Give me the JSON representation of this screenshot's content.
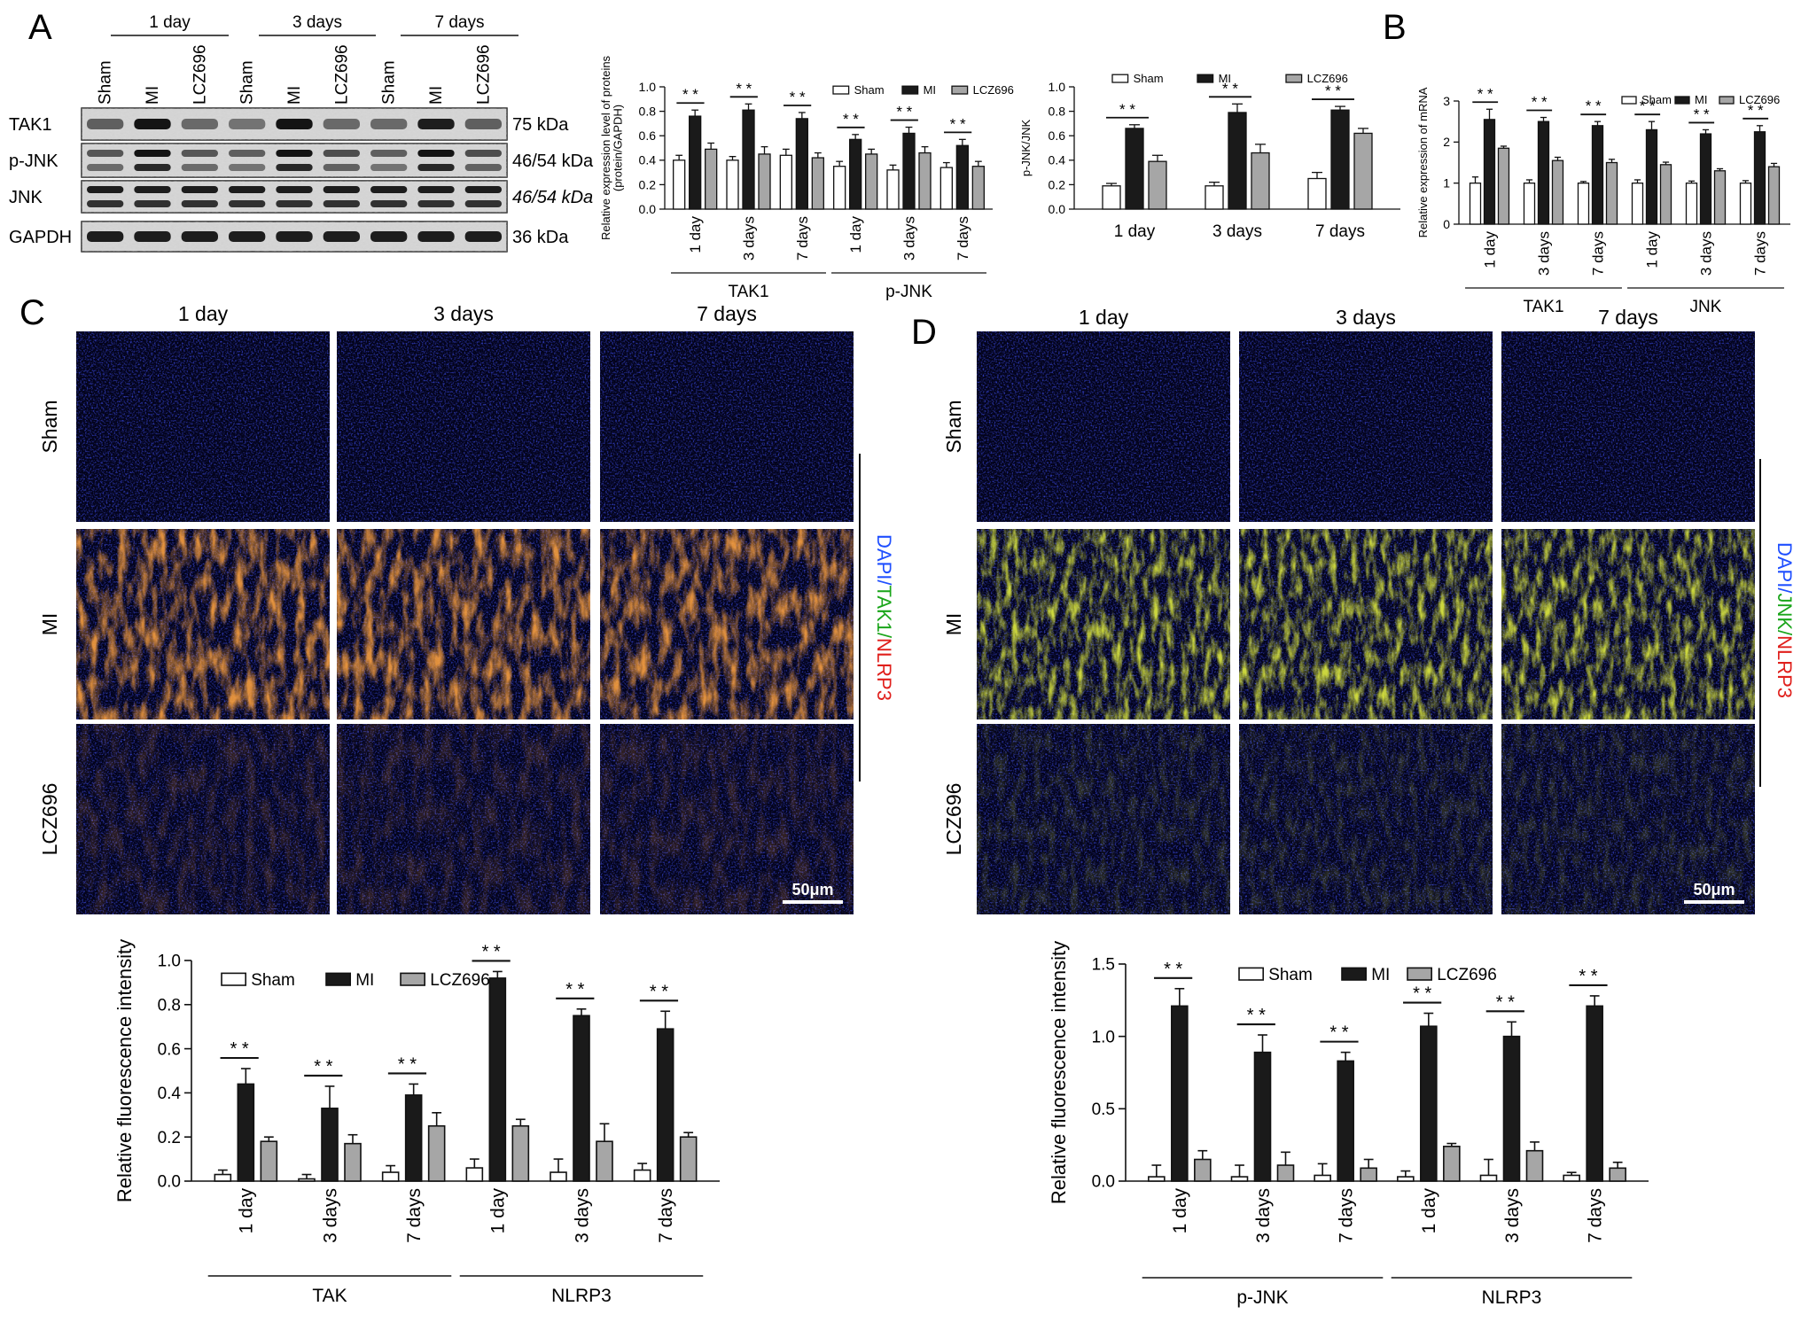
{
  "panel_letters": [
    "A",
    "B",
    "C",
    "D"
  ],
  "western_blot": {
    "time_groups": [
      "1 day",
      "3 days",
      "7 days"
    ],
    "lane_labels": [
      "Sham",
      "MI",
      "LCZ696",
      "Sham",
      "MI",
      "LCZ696",
      "Sham",
      "MI",
      "LCZ696"
    ],
    "rows": [
      {
        "protein": "TAK1",
        "size": "75 kDa"
      },
      {
        "protein": "p-JNK",
        "size": "46/54 kDa"
      },
      {
        "protein": "JNK",
        "size": "46/54 kDa"
      },
      {
        "protein": "GAPDH",
        "size": "36 kDa"
      }
    ]
  },
  "legend": [
    "Sham",
    "MI",
    "LCZ696"
  ],
  "colors": {
    "Sham": "#ffffff",
    "MI": "#1a1a1a",
    "LCZ696": "#a6a6a6",
    "dapi_label": "#1f4fff",
    "green_label": "#1aa51a",
    "red_label": "#e0201c"
  },
  "chart_data": [
    {
      "id": "A_protein",
      "type": "bar",
      "ylabel": "Relative expression level of proteins (protein/GAPDH)",
      "ylim": [
        0,
        1.0
      ],
      "yticks": [
        "0.0",
        "0.2",
        "0.4",
        "0.6",
        "0.8",
        "1.0"
      ],
      "categories": [
        "1 day",
        "3 days",
        "7 days",
        "1 day",
        "3 days",
        "7 days"
      ],
      "groups": [
        "TAK1",
        "p-JNK"
      ],
      "series": [
        {
          "name": "Sham",
          "values": [
            0.4,
            0.4,
            0.44,
            0.35,
            0.32,
            0.34
          ],
          "err": [
            0.04,
            0.03,
            0.05,
            0.04,
            0.04,
            0.04
          ]
        },
        {
          "name": "MI",
          "values": [
            0.76,
            0.81,
            0.74,
            0.57,
            0.62,
            0.52
          ],
          "err": [
            0.05,
            0.05,
            0.05,
            0.04,
            0.05,
            0.05
          ]
        },
        {
          "name": "LCZ696",
          "values": [
            0.49,
            0.45,
            0.42,
            0.45,
            0.46,
            0.35
          ],
          "err": [
            0.05,
            0.06,
            0.04,
            0.04,
            0.05,
            0.04
          ]
        }
      ],
      "legend_position": "top-right",
      "annotation": "* *"
    },
    {
      "id": "A_ratio",
      "type": "bar",
      "ylabel": "p-JNK/JNK",
      "ylim": [
        0,
        1.0
      ],
      "yticks": [
        "0.0",
        "0.2",
        "0.4",
        "0.6",
        "0.8",
        "1.0"
      ],
      "categories": [
        "1 day",
        "3 days",
        "7 days"
      ],
      "series": [
        {
          "name": "Sham",
          "values": [
            0.19,
            0.19,
            0.25
          ],
          "err": [
            0.02,
            0.03,
            0.05
          ]
        },
        {
          "name": "MI",
          "values": [
            0.66,
            0.79,
            0.81
          ],
          "err": [
            0.03,
            0.07,
            0.03
          ]
        },
        {
          "name": "LCZ696",
          "values": [
            0.39,
            0.46,
            0.62
          ],
          "err": [
            0.05,
            0.07,
            0.04
          ]
        }
      ],
      "legend_position": "top",
      "annotation": "*   *"
    },
    {
      "id": "B_mrna",
      "type": "bar",
      "ylabel": "Relative expression of mRNA",
      "ylim": [
        0,
        3
      ],
      "yticks": [
        "0",
        "1",
        "2",
        "3"
      ],
      "categories": [
        "1 day",
        "3 days",
        "7 days",
        "1 day",
        "3 days",
        "7 days"
      ],
      "groups": [
        "TAK1",
        "JNK"
      ],
      "series": [
        {
          "name": "Sham",
          "values": [
            1.0,
            1.0,
            1.0,
            1.0,
            1.0,
            1.0
          ],
          "err": [
            0.15,
            0.08,
            0.04,
            0.08,
            0.05,
            0.06
          ]
        },
        {
          "name": "MI",
          "values": [
            2.55,
            2.5,
            2.4,
            2.3,
            2.2,
            2.25
          ],
          "err": [
            0.25,
            0.1,
            0.1,
            0.2,
            0.1,
            0.15
          ]
        },
        {
          "name": "LCZ696",
          "values": [
            1.85,
            1.55,
            1.5,
            1.45,
            1.3,
            1.4
          ],
          "err": [
            0.05,
            0.08,
            0.08,
            0.06,
            0.05,
            0.08
          ]
        }
      ],
      "legend_position": "top-right",
      "annotation": "* *"
    },
    {
      "id": "C_fluor",
      "type": "bar",
      "ylabel": "Relative fluorescence intensity",
      "ylim": [
        0,
        1.0
      ],
      "yticks": [
        "0.0",
        "0.2",
        "0.4",
        "0.6",
        "0.8",
        "1.0"
      ],
      "categories": [
        "1 day",
        "3 days",
        "7 days",
        "1 day",
        "3 days",
        "7 days"
      ],
      "groups": [
        "TAK",
        "NLRP3"
      ],
      "series": [
        {
          "name": "Sham",
          "values": [
            0.03,
            0.01,
            0.04,
            0.06,
            0.04,
            0.05
          ],
          "err": [
            0.02,
            0.02,
            0.03,
            0.04,
            0.06,
            0.03
          ]
        },
        {
          "name": "MI",
          "values": [
            0.44,
            0.33,
            0.39,
            0.92,
            0.75,
            0.69
          ],
          "err": [
            0.07,
            0.1,
            0.05,
            0.03,
            0.03,
            0.08
          ]
        },
        {
          "name": "LCZ696",
          "values": [
            0.18,
            0.17,
            0.25,
            0.25,
            0.18,
            0.2
          ],
          "err": [
            0.02,
            0.04,
            0.06,
            0.03,
            0.08,
            0.02
          ]
        }
      ],
      "legend_position": "top",
      "annotation": "* *"
    },
    {
      "id": "D_fluor",
      "type": "bar",
      "ylabel": "Relative fluorescence intensity",
      "ylim": [
        0,
        1.5
      ],
      "yticks": [
        "0.0",
        "0.5",
        "1.0",
        "1.5"
      ],
      "categories": [
        "1 day",
        "3 days",
        "7 days",
        "1 day",
        "3 days",
        "7 days"
      ],
      "groups": [
        "p-JNK",
        "NLRP3"
      ],
      "series": [
        {
          "name": "Sham",
          "values": [
            0.03,
            0.03,
            0.04,
            0.03,
            0.04,
            0.04
          ],
          "err": [
            0.08,
            0.08,
            0.08,
            0.04,
            0.11,
            0.02
          ]
        },
        {
          "name": "MI",
          "values": [
            1.21,
            0.89,
            0.83,
            1.07,
            1.0,
            1.21
          ],
          "err": [
            0.12,
            0.12,
            0.06,
            0.09,
            0.1,
            0.07
          ]
        },
        {
          "name": "LCZ696",
          "values": [
            0.15,
            0.11,
            0.09,
            0.24,
            0.21,
            0.09
          ],
          "err": [
            0.06,
            0.09,
            0.06,
            0.02,
            0.06,
            0.04
          ]
        }
      ],
      "legend_position": "top",
      "annotation": "* *"
    }
  ],
  "micrographs": {
    "C": {
      "columns": [
        "1 day",
        "3 days",
        "7 days"
      ],
      "rows": [
        "Sham",
        "MI",
        "LCZ696"
      ],
      "stain_parts": [
        "DAPI/",
        "TAK1/",
        "NLRP3"
      ],
      "scale_bar": "50μm"
    },
    "D": {
      "columns": [
        "1 day",
        "3 days",
        "7 days"
      ],
      "rows": [
        "Sham",
        "MI",
        "LCZ696"
      ],
      "stain_parts": [
        "DAPI/",
        "JNK/",
        "NLRP3"
      ],
      "scale_bar": "50μm"
    }
  }
}
